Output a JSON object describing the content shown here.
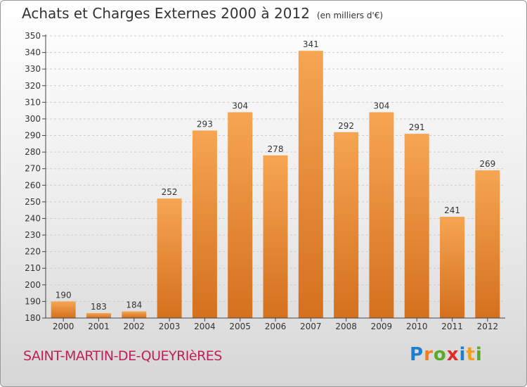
{
  "title": "Achats et Charges Externes 2000 à 2012",
  "unit": "(en milliers d'€)",
  "commune": "SAINT-MARTIN-DE-QUEYRIèRES",
  "logo": {
    "letters": [
      "P",
      "r",
      "o",
      "x",
      "i",
      "t",
      "i"
    ],
    "colors": [
      "#1e7fd0",
      "#f07f1a",
      "#5aaa2a",
      "#e02a2a",
      "#1e7fd0",
      "#f0a020",
      "#5aaa2a"
    ]
  },
  "colors": {
    "bar_top": "#f6a552",
    "bar_bottom": "#d4701e",
    "axis": "#444444",
    "grid": "#cccccc"
  },
  "chart_data": {
    "type": "bar",
    "categories": [
      "2000",
      "2001",
      "2002",
      "2003",
      "2004",
      "2005",
      "2006",
      "2007",
      "2008",
      "2009",
      "2010",
      "2011",
      "2012"
    ],
    "values": [
      190,
      183,
      184,
      252,
      293,
      304,
      278,
      341,
      292,
      304,
      291,
      241,
      269
    ],
    "title": "Achats et Charges Externes 2000 à 2012",
    "ylim": [
      180,
      350
    ],
    "yticks": [
      180,
      190,
      200,
      210,
      220,
      230,
      240,
      250,
      260,
      270,
      280,
      290,
      300,
      310,
      320,
      330,
      340,
      350
    ],
    "grid": true,
    "data_labels": true
  }
}
